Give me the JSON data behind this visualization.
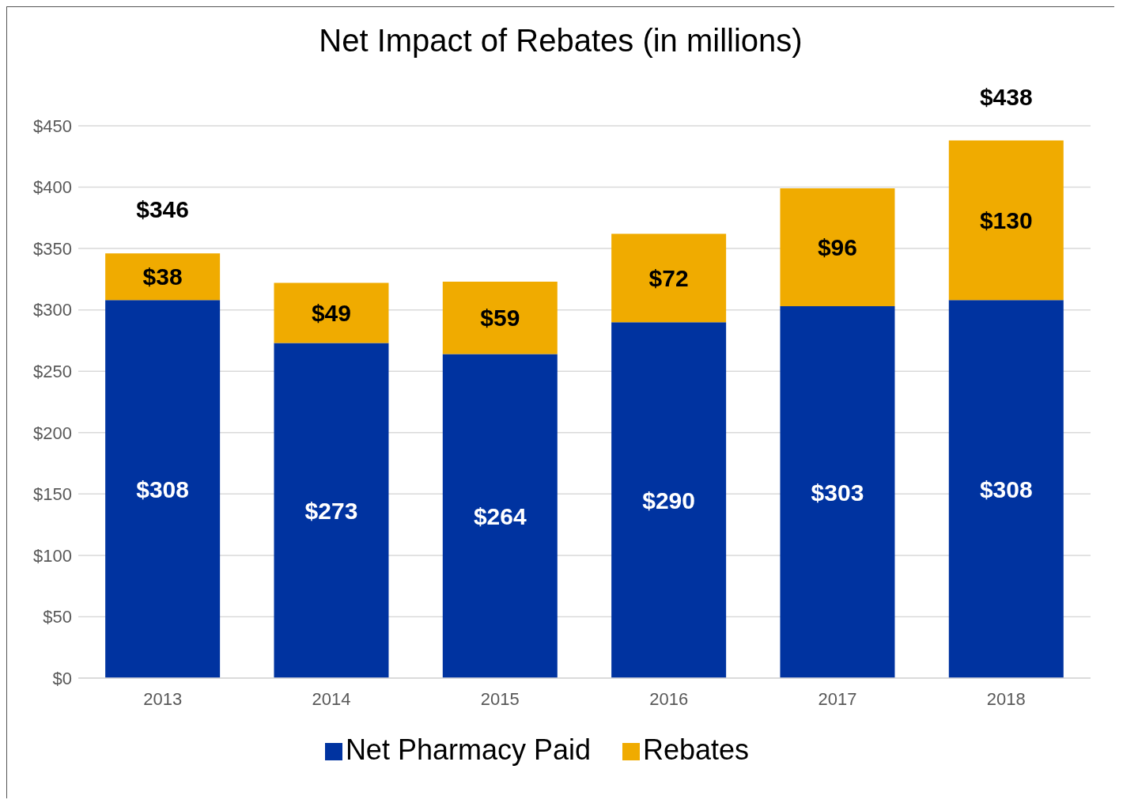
{
  "chart_data": {
    "type": "bar",
    "title": "Net Impact of Rebates (in millions)",
    "categories": [
      "2013",
      "2014",
      "2015",
      "2016",
      "2017",
      "2018"
    ],
    "series": [
      {
        "name": "Net Pharmacy Paid",
        "color": "#0033a0",
        "values": [
          308,
          273,
          264,
          290,
          303,
          308
        ],
        "value_labels": [
          "$308",
          "$273",
          "$264",
          "$290",
          "$303",
          "$308"
        ]
      },
      {
        "name": "Rebates",
        "color": "#f0ab00",
        "values": [
          38,
          49,
          59,
          72,
          96,
          130
        ],
        "value_labels": [
          "$38",
          "$49",
          "$59",
          "$72",
          "$96",
          "$130"
        ]
      }
    ],
    "stacked": true,
    "totals": [
      "$346",
      null,
      null,
      null,
      null,
      "$438"
    ],
    "ylim": [
      0,
      450
    ],
    "yticks": [
      {
        "value": 0,
        "label": "$0"
      },
      {
        "value": 50,
        "label": "$50"
      },
      {
        "value": 100,
        "label": "$100"
      },
      {
        "value": 150,
        "label": "$150"
      },
      {
        "value": 200,
        "label": "$200"
      },
      {
        "value": 250,
        "label": "$250"
      },
      {
        "value": 300,
        "label": "$300"
      },
      {
        "value": 350,
        "label": "$350"
      },
      {
        "value": 400,
        "label": "$400"
      },
      {
        "value": 450,
        "label": "$450"
      }
    ],
    "grid": "y",
    "legend": "bottom"
  }
}
